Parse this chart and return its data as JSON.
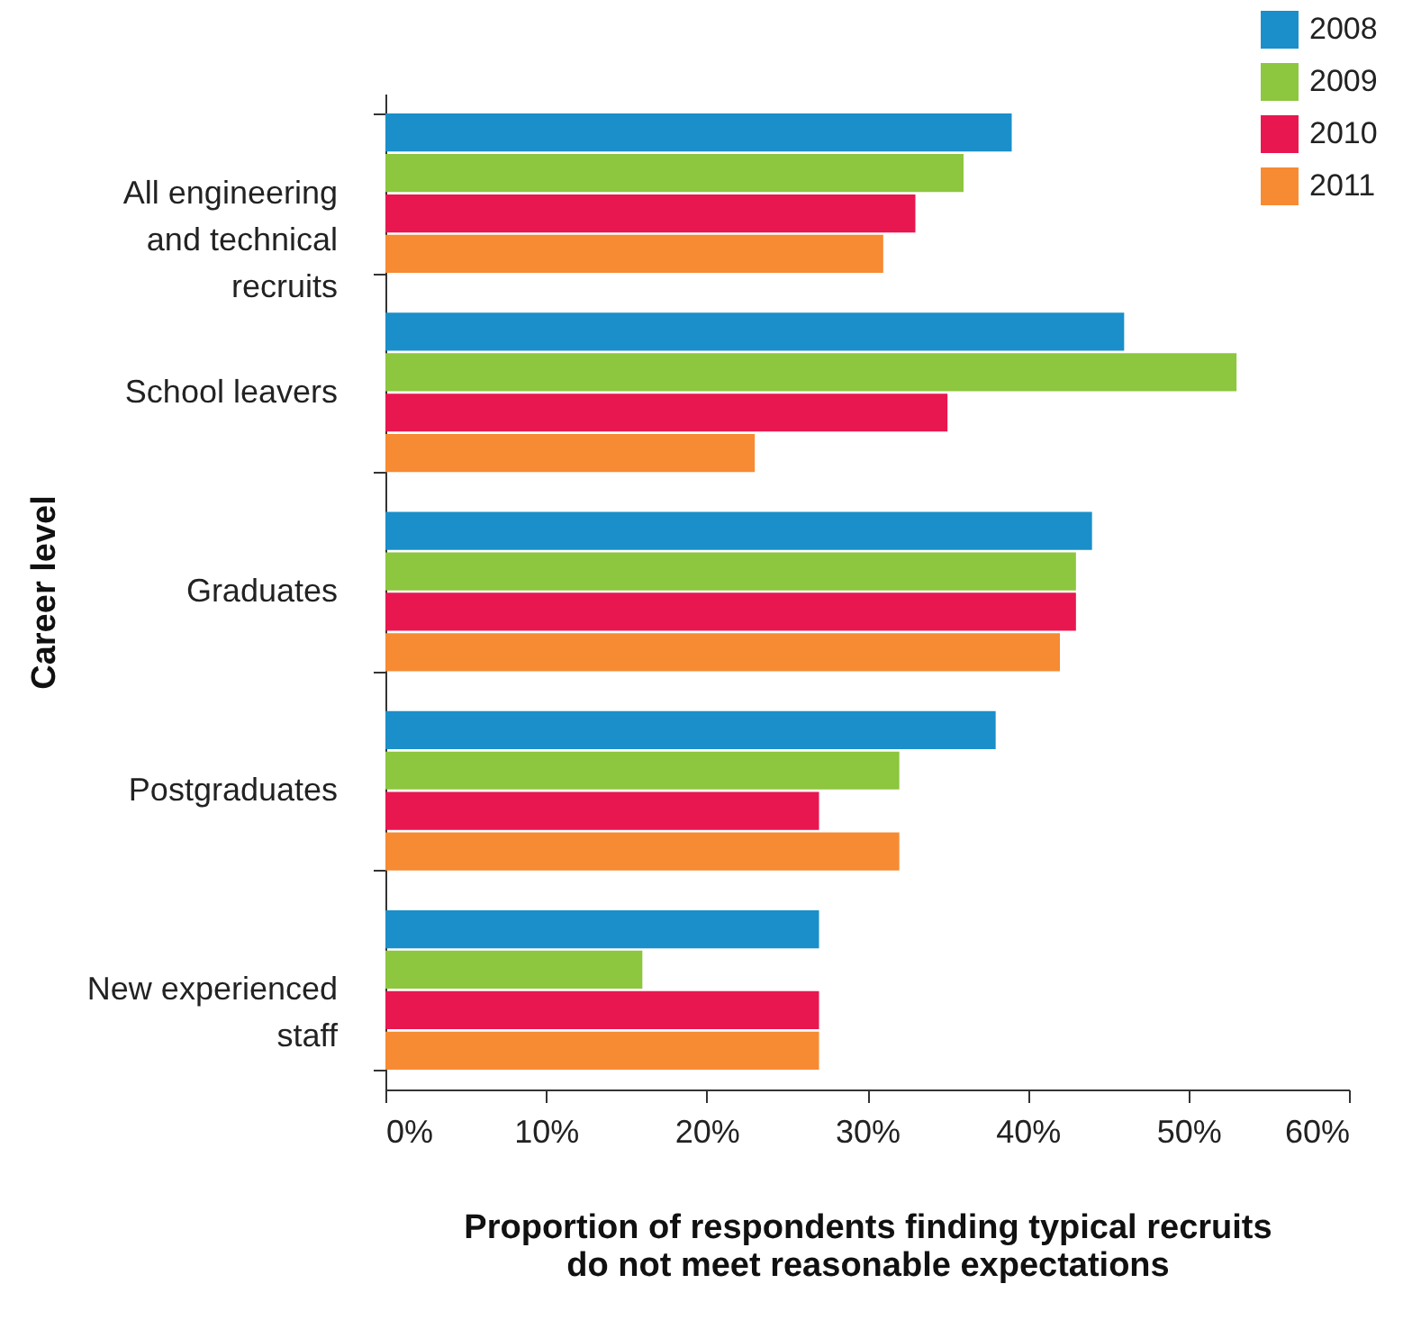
{
  "chart_data": {
    "type": "bar",
    "orientation": "horizontal",
    "xlabel": "Proportion of respondents finding typical recruits do not meet reasonable expectations",
    "ylabel": "Career level",
    "categories": [
      "All engineering and technical recruits",
      "School leavers",
      "Graduates",
      "Postgraduates",
      "New experienced staff"
    ],
    "series": [
      {
        "name": "2008",
        "color": "#1a8fc9",
        "values": [
          39,
          46,
          44,
          38,
          27
        ]
      },
      {
        "name": "2009",
        "color": "#8dc63f",
        "values": [
          36,
          53,
          43,
          32,
          16
        ]
      },
      {
        "name": "2010",
        "color": "#e8174f",
        "values": [
          33,
          35,
          43,
          27,
          27
        ]
      },
      {
        "name": "2011",
        "color": "#f68b33",
        "values": [
          31,
          23,
          42,
          32,
          27
        ]
      }
    ],
    "xlim": [
      0,
      60
    ],
    "xticks": [
      {
        "value": 0,
        "label": "0%"
      },
      {
        "value": 10,
        "label": "10%"
      },
      {
        "value": 20,
        "label": "20%"
      },
      {
        "value": 30,
        "label": "30%"
      },
      {
        "value": 40,
        "label": "40%"
      },
      {
        "value": 50,
        "label": "50%"
      },
      {
        "value": 60,
        "label": "60%"
      }
    ],
    "legend": "top right"
  }
}
